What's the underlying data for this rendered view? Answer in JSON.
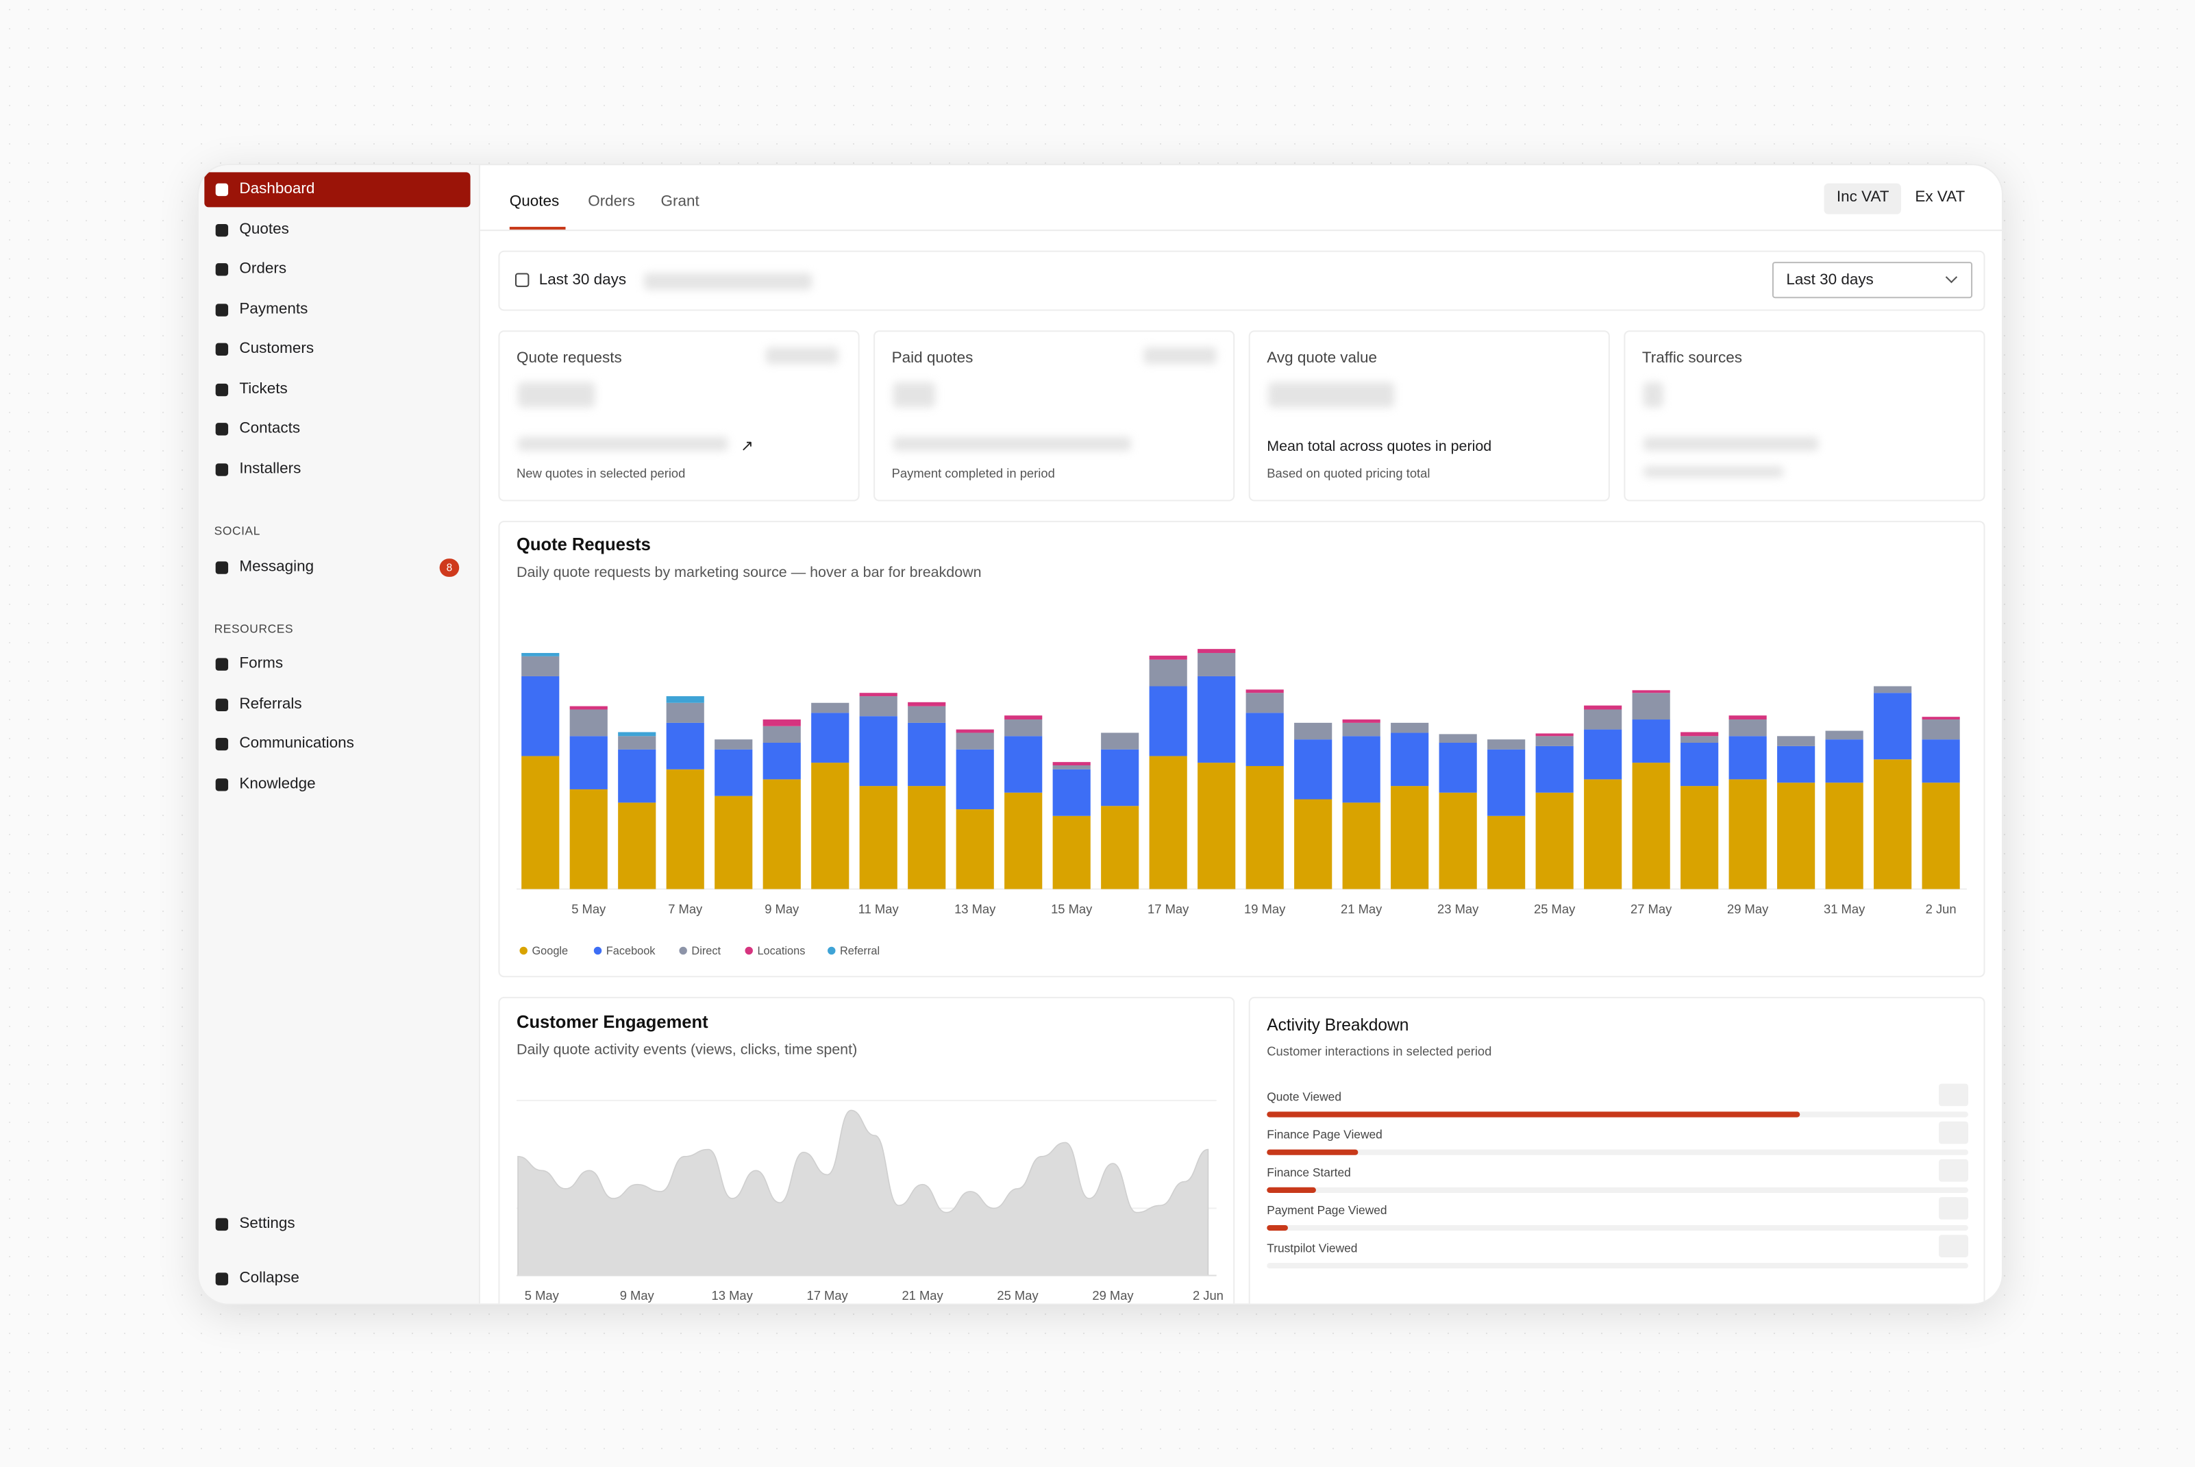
{
  "sidebar": {
    "nav": [
      "Dashboard",
      "Quotes",
      "Orders",
      "Payments",
      "Customers",
      "Tickets",
      "Contacts",
      "Installers"
    ],
    "social_heading": "SOCIAL",
    "social": [
      {
        "label": "Messaging",
        "badge": 8
      }
    ],
    "resources_heading": "RESOURCES",
    "resources": [
      "Forms",
      "Referrals",
      "Communications",
      "Knowledge"
    ],
    "settings": "Settings",
    "collapse": "Collapse"
  },
  "tabs": [
    "Quotes",
    "Orders",
    "Grant"
  ],
  "vat": [
    "Inc VAT",
    "Ex VAT"
  ],
  "date_range": "Last 30 days",
  "date_select": "Last 30 days",
  "cards": [
    {
      "title": "Quote requests",
      "caption": "New quotes in selected period"
    },
    {
      "title": "Paid quotes",
      "caption": "Payment completed in period"
    },
    {
      "title": "Avg quote value",
      "note": "Mean total across quotes in period",
      "caption": "Based on quoted pricing total"
    },
    {
      "title": "Traffic sources"
    }
  ],
  "chart_data": [
    {
      "type": "bar",
      "stacked": true,
      "title": "Quote Requests",
      "subtitle": "Daily quote requests by marketing source — hover a bar for breakdown",
      "categories": [
        null,
        "5 May",
        null,
        "7 May",
        null,
        "9 May",
        null,
        "11 May",
        null,
        "13 May",
        null,
        "15 May",
        null,
        "17 May",
        null,
        "19 May",
        null,
        "21 May",
        null,
        "23 May",
        null,
        "25 May",
        null,
        "27 May",
        null,
        "29 May",
        null,
        "31 May",
        null,
        "2 Jun"
      ],
      "series": [
        {
          "name": "Google",
          "color": "#d9a300",
          "values": [
            20,
            15,
            13,
            18,
            14,
            16.5,
            19,
            15.5,
            15.5,
            12,
            14.5,
            11,
            12.5,
            20,
            19,
            18.5,
            13.5,
            13,
            15.5,
            14.5,
            11,
            14.5,
            16.5,
            19,
            15.5,
            16.5,
            16,
            16,
            19.5,
            16
          ]
        },
        {
          "name": "Facebook",
          "color": "#3d6ef5",
          "values": [
            12,
            8,
            8,
            7,
            7,
            5.5,
            7.5,
            10.5,
            9.5,
            9,
            8.5,
            7,
            8.5,
            10.5,
            13,
            8,
            9,
            10,
            8,
            7.5,
            10,
            7,
            7.5,
            6.5,
            6.5,
            6.5,
            5.5,
            6.5,
            10,
            6.5
          ]
        },
        {
          "name": "Direct",
          "color": "#8d94a8",
          "values": [
            3,
            4,
            2,
            3,
            1.5,
            2.5,
            1.5,
            3,
            2.5,
            2.5,
            2.5,
            0.6,
            2.5,
            4,
            3.5,
            3,
            2.5,
            2,
            1.5,
            1.3,
            1.5,
            1.5,
            3,
            4,
            1,
            2.5,
            1.5,
            1.3,
            1,
            3
          ]
        },
        {
          "name": "Locations",
          "color": "#d6347f",
          "values": [
            0,
            0.5,
            0,
            0,
            0,
            1,
            0,
            0.5,
            0.6,
            0.5,
            0.6,
            0.5,
            0,
            0.6,
            0.6,
            0.5,
            0,
            0.5,
            0,
            0,
            0,
            0.4,
            0.6,
            0.4,
            0.6,
            0.6,
            0,
            0,
            0,
            0.4
          ]
        },
        {
          "name": "Referral",
          "color": "#3ea3d6",
          "values": [
            0.5,
            0,
            0.6,
            1,
            0,
            0,
            0,
            0,
            0,
            0,
            0,
            0,
            0,
            0,
            0,
            0,
            0,
            0,
            0,
            0,
            0,
            0,
            0,
            0,
            0,
            0,
            0,
            0,
            0,
            0
          ]
        }
      ],
      "ylim": [
        0,
        40
      ],
      "legend": "bottom-left"
    },
    {
      "type": "area",
      "title": "Customer Engagement",
      "subtitle": "Daily quote activity events (views, clicks, time spent)",
      "categories": [
        null,
        "5 May",
        null,
        null,
        null,
        "9 May",
        null,
        null,
        null,
        "13 May",
        null,
        null,
        null,
        "17 May",
        null,
        null,
        null,
        "21 May",
        null,
        null,
        null,
        "25 May",
        null,
        null,
        null,
        "29 May",
        null,
        null,
        null,
        "2 Jun"
      ],
      "values": [
        85,
        75,
        62,
        75,
        55,
        65,
        60,
        85,
        90,
        55,
        75,
        52,
        88,
        72,
        118,
        100,
        50,
        65,
        45,
        60,
        48,
        62,
        85,
        95,
        55,
        80,
        45,
        50,
        67,
        90
      ],
      "color": "#dcdcdc",
      "ylim": [
        0,
        130
      ]
    },
    {
      "type": "hbar",
      "title": "Activity Breakdown",
      "subtitle": "Customer interactions in selected period",
      "categories": [
        "Quote Viewed",
        "Finance Page Viewed",
        "Finance Started",
        "Payment Page Viewed",
        "Trustpilot Viewed"
      ],
      "values": [
        76,
        13,
        7,
        3,
        0
      ],
      "color": "#c8391a",
      "xlim": [
        0,
        100
      ]
    }
  ]
}
